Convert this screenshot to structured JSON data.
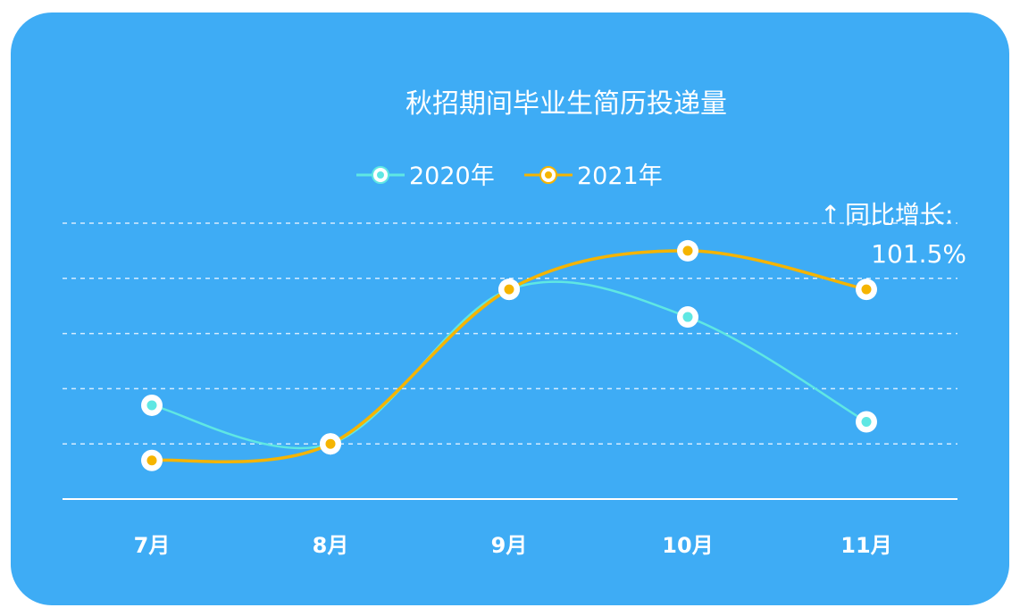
{
  "chart_data": {
    "type": "line",
    "title": "秋招期间毕业生简历投递量",
    "categories": [
      "7月",
      "8月",
      "9月",
      "10月",
      "11月"
    ],
    "series": [
      {
        "name": "2020年",
        "values": [
          1.7,
          1.0,
          3.8,
          3.3,
          1.4
        ],
        "color": "#5fe7e3"
      },
      {
        "name": "2021年",
        "values": [
          0.7,
          1.0,
          3.8,
          4.5,
          3.8
        ],
        "color": "#f5b400"
      }
    ],
    "ylim": [
      0,
      5
    ],
    "grid": true,
    "legend_position": "top-center",
    "annotation": {
      "arrow": "↑",
      "label": "同比增长:",
      "value": "101.5%"
    }
  },
  "colors": {
    "background": "#3eacf5",
    "grid": "#d5ecff",
    "axis": "#ffffff",
    "marker_fill": "#ffffff"
  }
}
